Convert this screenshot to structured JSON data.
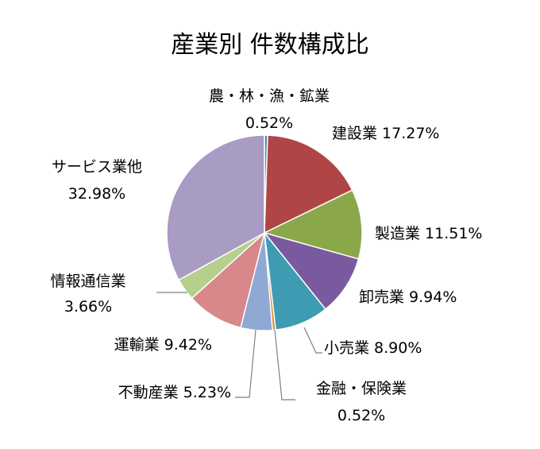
{
  "chart_data": {
    "type": "pie",
    "title": "産業別 件数構成比",
    "start_angle_deg": 0,
    "direction": "clockwise",
    "slices": [
      {
        "name": "農・林・漁・鉱業",
        "value": 0.52,
        "label_value": "0.52%",
        "color": "#4f81bd"
      },
      {
        "name": "建設業",
        "value": 17.27,
        "label_value": "17.27%",
        "color": "#b04545"
      },
      {
        "name": "製造業",
        "value": 11.51,
        "label_value": "11.51%",
        "color": "#8aa84a"
      },
      {
        "name": "卸売業",
        "value": 9.94,
        "label_value": "9.94%",
        "color": "#7a5a9e"
      },
      {
        "name": "小売業",
        "value": 8.9,
        "label_value": "8.90%",
        "color": "#3f9bb2"
      },
      {
        "name": "金融・保険業",
        "value": 0.52,
        "label_value": "0.52%",
        "color": "#e08a3a"
      },
      {
        "name": "不動産業",
        "value": 5.23,
        "label_value": "5.23%",
        "color": "#8fa9d4"
      },
      {
        "name": "運輸業",
        "value": 9.42,
        "label_value": "9.42%",
        "color": "#d8888a"
      },
      {
        "name": "情報通信業",
        "value": 3.66,
        "label_value": "3.66%",
        "color": "#b5d08c"
      },
      {
        "name": "サービス業他",
        "value": 32.98,
        "label_value": "32.98%",
        "color": "#a89bc4"
      }
    ]
  }
}
